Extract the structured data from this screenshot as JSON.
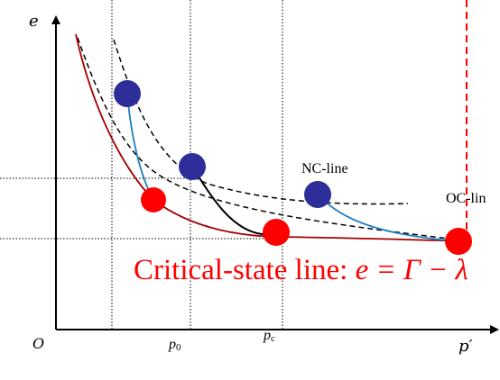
{
  "axes": {
    "y_label": "e",
    "x_label": "p′",
    "origin_label": "O",
    "tick_p0_main": "p",
    "tick_p0_sub": "0",
    "tick_pc_main": "p",
    "tick_pc_sub": "c"
  },
  "lines": {
    "nc_label": "NC-line",
    "oc_label": "OC-lin"
  },
  "csl": {
    "text_plain": "Critical-state line: ",
    "text_math": "e = Γ − λ"
  },
  "colors": {
    "blue_point": "#2e2e9a",
    "red_point": "#ff0000",
    "csl_curve": "#a40000",
    "blue_path": "#1f7fc1",
    "black": "#000000"
  }
}
